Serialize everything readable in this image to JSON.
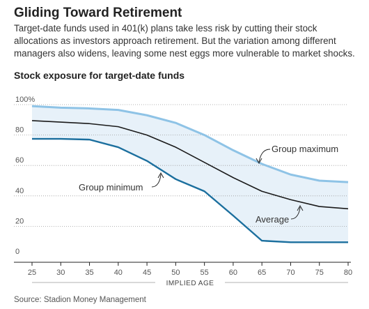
{
  "header": {
    "title": "Gliding Toward Retirement",
    "subtitle": "Target-date funds used in 401(k) plans take less risk by cutting their stock allocations as investors approach retirement. But the variation among different managers also widens, leaving some nest eggs more vulnerable to market shocks."
  },
  "chart_data": {
    "type": "line",
    "title": "Stock exposure for target-date funds",
    "xlabel": "IMPLIED AGE",
    "ylabel": "",
    "x": [
      25,
      30,
      35,
      40,
      45,
      50,
      55,
      60,
      65,
      70,
      75,
      80
    ],
    "xlim": [
      25,
      80
    ],
    "ylim": [
      0,
      100
    ],
    "x_ticks": [
      "25",
      "30",
      "35",
      "40",
      "45",
      "50",
      "55",
      "60",
      "65",
      "70",
      "75",
      "80"
    ],
    "y_ticks": [
      "0",
      "20",
      "40",
      "60",
      "80",
      "100%"
    ],
    "y_tick_values": [
      0,
      20,
      40,
      60,
      80,
      100
    ],
    "grid": "horizontal-dotted",
    "series": [
      {
        "name": "Group maximum",
        "color": "#8ec3e6",
        "values": [
          99,
          98,
          97.5,
          96.5,
          93,
          88,
          80,
          70,
          61,
          54,
          50,
          49
        ]
      },
      {
        "name": "Average",
        "color": "#1a1a1a",
        "values": [
          89.5,
          88.5,
          87.5,
          85.5,
          80,
          72,
          62,
          52,
          43,
          37.5,
          33,
          31.5
        ]
      },
      {
        "name": "Group minimum",
        "color": "#1b6f9e",
        "values": [
          77.5,
          77.5,
          77,
          72,
          63,
          51,
          43,
          27,
          10.5,
          9.5,
          9.5,
          9.5
        ]
      }
    ],
    "band_color": "#e7f1f9",
    "annotations": [
      "Group maximum",
      "Group minimum",
      "Average"
    ]
  },
  "footer": {
    "source": "Source: Stadion Money Management"
  }
}
